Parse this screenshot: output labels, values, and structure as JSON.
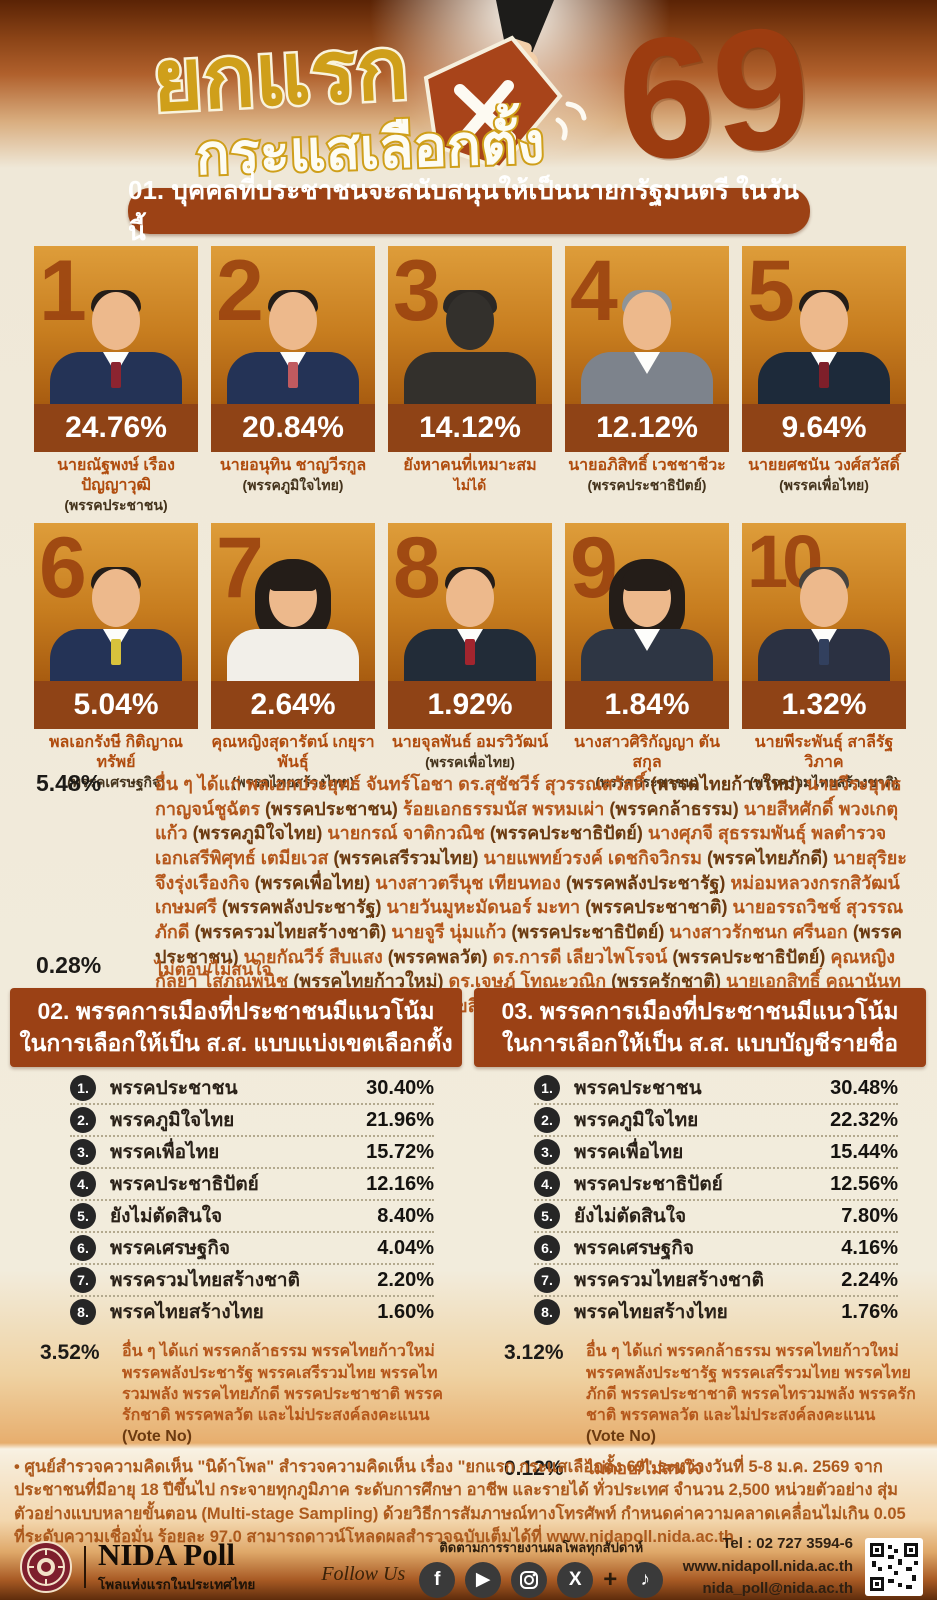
{
  "header": {
    "title_line1": "ยกแรก",
    "title_line2": "กระแสเลือกตั้ง",
    "year": "69"
  },
  "q1": {
    "heading": "01. บุคคลที่ประชาชนจะสนับสนุนให้เป็นนายกรัฐมนตรี ในวันนี้",
    "candidates": [
      {
        "rank": "1",
        "percent": "24.76%",
        "name": "นายณัฐพงษ์ เรืองปัญญาวุฒิ",
        "party": "(พรรคประชาชน)"
      },
      {
        "rank": "2",
        "percent": "20.84%",
        "name": "นายอนุทิน ชาญวีรกูล",
        "party": "(พรรคภูมิใจไทย)"
      },
      {
        "rank": "3",
        "percent": "14.12%",
        "name": "ยังหาคนที่เหมาะสม",
        "party": "ไม่ได้"
      },
      {
        "rank": "4",
        "percent": "12.12%",
        "name": "นายอภิสิทธิ์ เวชชาชีวะ",
        "party": "(พรรคประชาธิปัตย์)"
      },
      {
        "rank": "5",
        "percent": "9.64%",
        "name": "นายยศชนัน วงศ์สวัสดิ์",
        "party": "(พรรคเพื่อไทย)"
      },
      {
        "rank": "6",
        "percent": "5.04%",
        "name": "พลเอกรังษี กิติญาณทรัพย์",
        "party": "(พรรคเศรษฐกิจ)"
      },
      {
        "rank": "7",
        "percent": "2.64%",
        "name": "คุณหญิงสุดารัตน์ เกยุราพันธุ์",
        "party": "(พรรคไทยสร้างไทย)"
      },
      {
        "rank": "8",
        "percent": "1.92%",
        "name": "นายจุลพันธ์ อมรวิวัฒน์",
        "party": "(พรรคเพื่อไทย)"
      },
      {
        "rank": "9",
        "percent": "1.84%",
        "name": "นางสาวศิริกัญญา ตันสกุล",
        "party": "(พรรคประชาชน)"
      },
      {
        "rank": "10",
        "percent": "1.32%",
        "name": "นายพีระพันธุ์ สาลีรัฐวิภาค",
        "party": "(พรรครวมไทยสร้างชาติ)"
      }
    ],
    "others_percent": "5.48%",
    "others_text": "อื่น ๆ ได้แก่ พลเอกประยุทธ์ จันทร์โอชา ดร.สุชัชวีร์ สุวรรณสวัสดิ์ (พรรคไทยก้าวใหม่) นายวีระยุทธ กาญจน์ชูฉัตร (พรรคประชาชน) ร้อยเอกธรรมนัส พรหมเผ่า (พรรคกล้าธรรม) นายสีหศักดิ์ พวงเกตุแก้ว (พรรคภูมิใจไทย) นายกรณ์ จาติกวณิช (พรรคประชาธิปัตย์) นางศุภจี สุธรรมพันธุ์ พลตำรวจเอกเสรีพิศุทธ์ เตมียเวส (พรรคเสรีรวมไทย) นายแพทย์วรงค์ เดชกิจวิกรม (พรรคไทยภักดี) นายสุริยะ จึงรุ่งเรืองกิจ (พรรคเพื่อไทย) นางสาวตรีนุช เทียนทอง (พรรคพลังประชารัฐ) หม่อมหลวงกรกสิวัฒน์ เกษมศรี (พรรคพลังประชารัฐ) นายวันมูหะมัดนอร์ มะทา (พรรคประชาชาติ) นายอรรถวิชช์ สุวรรณภักดี (พรรครวมไทยสร้างชาติ) นายจูรี นุ่มแก้ว (พรรคประชาธิปัตย์) นางสาวรักชนก ศรีนอก (พรรคประชาชน) นายกัณวีร์ สืบแสง (พรรคพลวัต) ดร.การดี เลียวไพโรจน์ (พรรคประชาธิปัตย์) คุณหญิงกัลยา โสภณพนิช (พรรคไทยก้าวใหม่) ดร.เจษฎ์ โทณะวณิก (พรรครักชาติ) นายเอกสิทธิ์ คุณานันทกุล (พรรคปวงชนไทย) นายมงคลกิตติ์ สุขสินธารานนท์ (พรรคทางเลือกใหม่) และไม่ประสงค์ลงคะแนน (Vote No)",
    "no_answer_percent": "0.28%",
    "no_answer_text": "ไม่ตอบ/ไม่สนใจ"
  },
  "q2": {
    "heading_line1": "02. พรรคการเมืองที่ประชาชนมีแนวโน้ม",
    "heading_line2": "ในการเลือกให้เป็น ส.ส. แบบแบ่งเขตเลือกตั้ง",
    "rows": [
      {
        "rank": "1.",
        "party": "พรรคประชาชน",
        "percent": "30.40%"
      },
      {
        "rank": "2.",
        "party": "พรรคภูมิใจไทย",
        "percent": "21.96%"
      },
      {
        "rank": "3.",
        "party": "พรรคเพื่อไทย",
        "percent": "15.72%"
      },
      {
        "rank": "4.",
        "party": "พรรคประชาธิปัตย์",
        "percent": "12.16%"
      },
      {
        "rank": "5.",
        "party": "ยังไม่ตัดสินใจ",
        "percent": "8.40%"
      },
      {
        "rank": "6.",
        "party": "พรรคเศรษฐกิจ",
        "percent": "4.04%"
      },
      {
        "rank": "7.",
        "party": "พรรครวมไทยสร้างชาติ",
        "percent": "2.20%"
      },
      {
        "rank": "8.",
        "party": "พรรคไทยสร้างไทย",
        "percent": "1.60%"
      }
    ],
    "others_percent": "3.52%",
    "others_text": "อื่น ๆ ได้แก่ พรรคกล้าธรรม พรรคไทยก้าวใหม่ พรรคพลังประชารัฐ พรรคเสรีรวมไทย พรรคไทรวมพลัง พรรคไทยภักดี พรรคประชาชาติ พรรครักชาติ พรรคพลวัต และไม่ประสงค์ลงคะแนน (Vote No)"
  },
  "q3": {
    "heading_line1": "03. พรรคการเมืองที่ประชาชนมีแนวโน้ม",
    "heading_line2": "ในการเลือกให้เป็น ส.ส. แบบบัญชีรายชื่อ",
    "rows": [
      {
        "rank": "1.",
        "party": "พรรคประชาชน",
        "percent": "30.48%"
      },
      {
        "rank": "2.",
        "party": "พรรคภูมิใจไทย",
        "percent": "22.32%"
      },
      {
        "rank": "3.",
        "party": "พรรคเพื่อไทย",
        "percent": "15.44%"
      },
      {
        "rank": "4.",
        "party": "พรรคประชาธิปัตย์",
        "percent": "12.56%"
      },
      {
        "rank": "5.",
        "party": "ยังไม่ตัดสินใจ",
        "percent": "7.80%"
      },
      {
        "rank": "6.",
        "party": "พรรคเศรษฐกิจ",
        "percent": "4.16%"
      },
      {
        "rank": "7.",
        "party": "พรรครวมไทยสร้างชาติ",
        "percent": "2.24%"
      },
      {
        "rank": "8.",
        "party": "พรรคไทยสร้างไทย",
        "percent": "1.76%"
      }
    ],
    "others_percent": "3.12%",
    "others_text": "อื่น ๆ ได้แก่ พรรคกล้าธรรม พรรคไทยก้าวใหม่ พรรคพลังประชารัฐ พรรคเสรีรวมไทย พรรคไทยภักดี พรรคประชาชาติ พรรคไทรวมพลัง พรรครักชาติ พรรคพลวัต และไม่ประสงค์ลงคะแนน (Vote No)",
    "no_answer_percent": "0.12%",
    "no_answer_text": "ไม่ตอบ/ไม่สนใจ"
  },
  "methodology": "• ศูนย์สำรวจความคิดเห็น \"นิด้าโพล\" สำรวจความคิดเห็น เรื่อง \"ยกแรก กระแสเลือกตั้ง 69\" ระหว่างวันที่ 5-8 ม.ค. 2569 จากประชาชนที่มีอายุ 18 ปีขึ้นไป กระจายทุกภูมิภาค ระดับการศึกษา อาชีพ และรายได้ ทั่วประเทศ จำนวน 2,500 หน่วยตัวอย่าง สุ่มตัวอย่างแบบหลายขั้นตอน (Multi-stage Sampling) ด้วยวิธีการสัมภาษณ์ทางโทรศัพท์ กำหนดค่าความคลาดเคลื่อนไม่เกิน 0.05 ที่ระดับความเชื่อมั่น ร้อยละ 97.0 สามารถดาวน์โหลดผลสำรวจฉบับเต็มได้ที่ www.nidapoll.nida.ac.th",
  "footer": {
    "brand": "NIDA Poll",
    "tagline": "โพลแห่งแรกในประเทศไทย",
    "follow_us": "Follow Us",
    "social_caption": "ติดตามการรายงานผลโพลทุกสัปดาห์",
    "socials": [
      "facebook",
      "youtube",
      "instagram",
      "x",
      "tiktok"
    ],
    "tel": "Tel : 02 727 3594-6",
    "website": "www.nidapoll.nida.ac.th",
    "email": "nida_poll@nida.ac.th"
  },
  "colors": {
    "accent_rust": "#9c4215",
    "gold": "#cf9f1a",
    "percent_bar": "#8f4316",
    "body_orange_text": "#b5571b",
    "dark_brown": "#5a2305"
  },
  "chart_data": [
    {
      "type": "bar",
      "title": "01. บุคคลที่ประชาชนจะสนับสนุนให้เป็นนายกรัฐมนตรี ในวันนี้",
      "categories": [
        "นายณัฐพงษ์ เรืองปัญญาวุฒิ (พรรคประชาชน)",
        "นายอนุทิน ชาญวีรกูล (พรรคภูมิใจไทย)",
        "ยังหาคนที่เหมาะสมไม่ได้",
        "นายอภิสิทธิ์ เวชชาชีวะ (พรรคประชาธิปัตย์)",
        "นายยศชนัน วงศ์สวัสดิ์ (พรรคเพื่อไทย)",
        "พลเอกรังษี กิติญาณทรัพย์ (พรรคเศรษฐกิจ)",
        "คุณหญิงสุดารัตน์ เกยุราพันธุ์ (พรรคไทยสร้างไทย)",
        "นายจุลพันธ์ อมรวิวัฒน์ (พรรคเพื่อไทย)",
        "นางสาวศิริกัญญา ตันสกุล (พรรคประชาชน)",
        "นายพีระพันธุ์ สาลีรัฐวิภาค (พรรครวมไทยสร้างชาติ)",
        "อื่น ๆ",
        "ไม่ตอบ/ไม่สนใจ"
      ],
      "values": [
        24.76,
        20.84,
        14.12,
        12.12,
        9.64,
        5.04,
        2.64,
        1.92,
        1.84,
        1.32,
        5.48,
        0.28
      ],
      "unit": "%"
    },
    {
      "type": "bar",
      "title": "02. พรรคการเมืองที่ประชาชนมีแนวโน้มในการเลือกให้เป็น ส.ส. แบบแบ่งเขตเลือกตั้ง",
      "categories": [
        "พรรคประชาชน",
        "พรรคภูมิใจไทย",
        "พรรคเพื่อไทย",
        "พรรคประชาธิปัตย์",
        "ยังไม่ตัดสินใจ",
        "พรรคเศรษฐกิจ",
        "พรรครวมไทยสร้างชาติ",
        "พรรคไทยสร้างไทย",
        "อื่น ๆ"
      ],
      "values": [
        30.4,
        21.96,
        15.72,
        12.16,
        8.4,
        4.04,
        2.2,
        1.6,
        3.52
      ],
      "unit": "%"
    },
    {
      "type": "bar",
      "title": "03. พรรคการเมืองที่ประชาชนมีแนวโน้มในการเลือกให้เป็น ส.ส. แบบบัญชีรายชื่อ",
      "categories": [
        "พรรคประชาชน",
        "พรรคภูมิใจไทย",
        "พรรคเพื่อไทย",
        "พรรคประชาธิปัตย์",
        "ยังไม่ตัดสินใจ",
        "พรรคเศรษฐกิจ",
        "พรรครวมไทยสร้างชาติ",
        "พรรคไทยสร้างไทย",
        "อื่น ๆ",
        "ไม่ตอบ/ไม่สนใจ"
      ],
      "values": [
        30.48,
        22.32,
        15.44,
        12.56,
        7.8,
        4.16,
        2.24,
        1.76,
        3.12,
        0.12
      ],
      "unit": "%"
    }
  ]
}
